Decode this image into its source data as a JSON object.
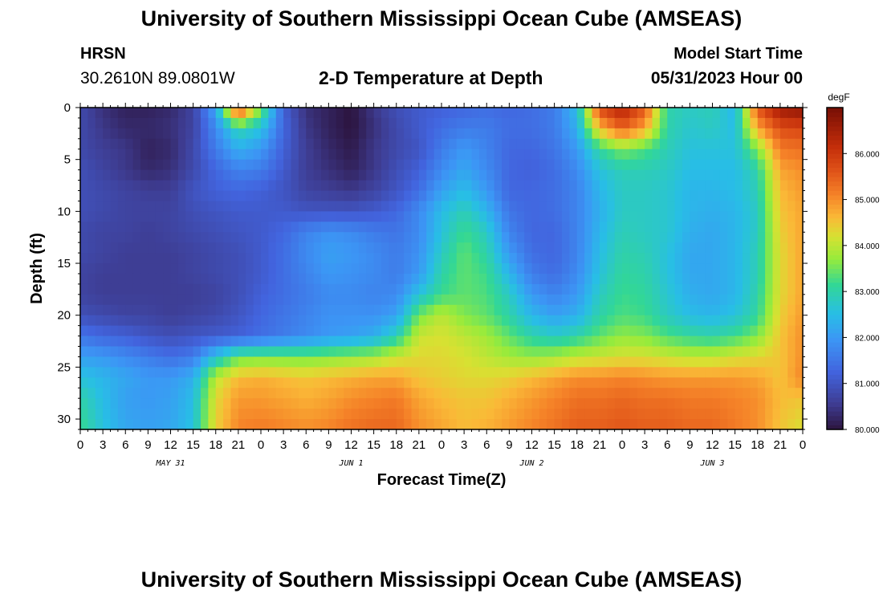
{
  "header": {
    "institution_title": "University of Southern Mississippi Ocean Cube (AMSEAS)",
    "station_id": "HRSN",
    "coordinates": "30.2610N  89.0801W",
    "chart_title": "2-D Temperature at Depth",
    "model_start_label": "Model Start Time",
    "model_start_value": "05/31/2023 Hour 00"
  },
  "footer": {
    "institution_title": "University of Southern Mississippi Ocean Cube (AMSEAS)"
  },
  "chart_data": {
    "type": "heatmap",
    "title": "2-D Temperature at Depth",
    "xlabel": "Forecast Time(Z)",
    "ylabel": "Depth (ft)",
    "x_hours_range": [
      0,
      96
    ],
    "y_range_ft": [
      0,
      31
    ],
    "x_tick_labels": [
      "0",
      "3",
      "6",
      "9",
      "12",
      "15",
      "18",
      "21",
      "0",
      "3",
      "6",
      "9",
      "12",
      "15",
      "18",
      "21",
      "0",
      "3",
      "6",
      "9",
      "12",
      "15",
      "18",
      "21",
      "0",
      "3",
      "6",
      "9",
      "12",
      "15",
      "18",
      "21",
      "0"
    ],
    "y_tick_labels": [
      "0",
      "5",
      "10",
      "15",
      "20",
      "25",
      "30"
    ],
    "y_tick_values": [
      0,
      5,
      10,
      15,
      20,
      25,
      30
    ],
    "date_labels": [
      {
        "label": "MAY 31",
        "hour": 12
      },
      {
        "label": "JUN 1",
        "hour": 36
      },
      {
        "label": "JUN 2",
        "hour": 60
      },
      {
        "label": "JUN 3",
        "hour": 84
      }
    ],
    "colorbar": {
      "unit": "degF",
      "min": 80.0,
      "max": 87.0,
      "tick_labels": [
        "86.000",
        "85.000",
        "84.000",
        "83.000",
        "82.000",
        "81.000",
        "80.000"
      ],
      "tick_values": [
        86,
        85,
        84,
        83,
        82,
        81,
        80
      ]
    },
    "depths_ft": [
      0,
      2,
      4,
      6,
      8,
      10,
      12,
      14,
      16,
      18,
      20,
      22,
      24,
      26,
      28,
      31
    ],
    "hours": [
      0,
      3,
      6,
      9,
      12,
      15,
      18,
      21,
      24,
      27,
      30,
      33,
      36,
      39,
      42,
      45,
      48,
      51,
      54,
      57,
      60,
      63,
      66,
      69,
      72,
      75,
      78,
      81,
      84,
      87,
      90,
      93,
      96
    ],
    "temperature_degF": [
      [
        80.8,
        80.4,
        80.2,
        80.2,
        80.3,
        80.7,
        82.2,
        86.0,
        83.6,
        81.2,
        80.4,
        80.2,
        80.0,
        80.5,
        80.9,
        81.1,
        81.2,
        81.3,
        81.4,
        81.3,
        81.4,
        81.6,
        82.5,
        85.8,
        86.4,
        85.6,
        83.0,
        82.8,
        82.9,
        82.4,
        85.6,
        86.6,
        86.8
      ],
      [
        80.8,
        80.5,
        80.3,
        80.3,
        80.4,
        80.7,
        81.8,
        83.0,
        82.6,
        81.3,
        80.5,
        80.2,
        80.0,
        80.4,
        80.8,
        81.1,
        81.4,
        81.6,
        81.6,
        81.4,
        81.4,
        81.6,
        82.3,
        84.6,
        85.5,
        84.8,
        83.0,
        82.7,
        82.8,
        82.5,
        84.8,
        85.7,
        85.8
      ],
      [
        80.8,
        80.6,
        80.5,
        80.2,
        80.3,
        80.8,
        81.6,
        82.3,
        82.0,
        81.2,
        80.6,
        80.3,
        80.1,
        80.5,
        80.8,
        81.0,
        81.6,
        82.0,
        81.7,
        81.3,
        81.3,
        81.5,
        82.0,
        83.1,
        83.6,
        83.3,
        82.9,
        82.6,
        82.6,
        82.6,
        83.6,
        85.2,
        85.3
      ],
      [
        80.9,
        80.7,
        80.5,
        80.3,
        80.4,
        80.8,
        81.3,
        81.7,
        81.6,
        81.1,
        80.6,
        80.4,
        80.2,
        80.5,
        80.9,
        81.2,
        81.8,
        82.2,
        81.8,
        81.3,
        81.2,
        81.4,
        81.8,
        82.6,
        82.9,
        82.9,
        82.8,
        82.5,
        82.5,
        82.5,
        83.0,
        84.8,
        85.0
      ],
      [
        80.9,
        80.8,
        80.7,
        80.6,
        80.6,
        81.0,
        81.2,
        81.3,
        81.2,
        81.0,
        80.7,
        80.6,
        80.5,
        80.7,
        81.0,
        81.4,
        82.1,
        82.5,
        82.0,
        81.3,
        81.3,
        81.4,
        81.7,
        82.4,
        82.8,
        82.8,
        82.7,
        82.4,
        82.4,
        82.5,
        82.9,
        84.6,
        84.9
      ],
      [
        80.9,
        80.8,
        80.7,
        80.7,
        80.7,
        80.9,
        81.0,
        81.1,
        81.1,
        81.1,
        81.0,
        81.0,
        81.0,
        81.1,
        81.3,
        81.8,
        82.5,
        82.9,
        82.4,
        81.5,
        81.3,
        81.4,
        81.7,
        82.3,
        82.8,
        82.8,
        82.7,
        82.4,
        82.3,
        82.4,
        82.8,
        84.5,
        84.8
      ],
      [
        80.8,
        80.7,
        80.7,
        80.6,
        80.7,
        80.8,
        80.9,
        81.0,
        81.1,
        81.3,
        81.7,
        81.9,
        81.8,
        81.6,
        81.5,
        81.8,
        82.6,
        83.2,
        82.8,
        81.7,
        81.3,
        81.3,
        81.7,
        82.4,
        82.9,
        82.8,
        82.7,
        82.3,
        82.2,
        82.4,
        82.8,
        84.4,
        84.8
      ],
      [
        80.8,
        80.7,
        80.6,
        80.6,
        80.6,
        80.7,
        80.8,
        80.9,
        81.1,
        81.4,
        81.8,
        82.1,
        82.0,
        81.8,
        81.6,
        81.9,
        82.8,
        83.4,
        83.0,
        82.0,
        81.4,
        81.3,
        81.7,
        82.5,
        83.0,
        82.9,
        82.6,
        82.2,
        82.2,
        82.4,
        82.9,
        84.3,
        84.8
      ],
      [
        80.7,
        80.6,
        80.6,
        80.6,
        80.6,
        80.7,
        80.8,
        80.9,
        81.1,
        81.4,
        81.7,
        82.0,
        81.9,
        81.8,
        81.6,
        82.0,
        83.0,
        83.4,
        83.2,
        82.4,
        81.6,
        81.4,
        81.8,
        82.6,
        83.1,
        83.0,
        82.6,
        82.2,
        82.2,
        82.4,
        82.9,
        84.3,
        84.8
      ],
      [
        80.7,
        80.6,
        80.6,
        80.6,
        80.6,
        80.6,
        80.7,
        80.9,
        81.2,
        81.4,
        81.6,
        81.8,
        81.8,
        81.7,
        81.8,
        82.6,
        83.2,
        83.4,
        83.3,
        82.8,
        82.0,
        81.7,
        82.0,
        82.8,
        83.2,
        83.1,
        82.7,
        82.3,
        82.2,
        82.4,
        83.0,
        84.3,
        84.8
      ],
      [
        80.9,
        80.8,
        80.7,
        80.7,
        80.6,
        80.7,
        80.8,
        81.0,
        81.3,
        81.5,
        81.7,
        81.9,
        81.9,
        81.9,
        82.1,
        83.5,
        84.0,
        83.6,
        83.4,
        83.0,
        82.4,
        82.1,
        82.3,
        83.0,
        83.3,
        83.2,
        82.8,
        82.5,
        82.4,
        82.6,
        83.1,
        84.4,
        84.9
      ],
      [
        81.5,
        81.3,
        81.2,
        81.0,
        80.9,
        81.0,
        81.1,
        81.2,
        81.4,
        81.6,
        81.8,
        82.0,
        82.1,
        82.3,
        82.9,
        84.1,
        84.2,
        84.0,
        83.8,
        83.4,
        83.0,
        82.8,
        83.0,
        83.4,
        83.7,
        83.6,
        83.3,
        83.1,
        83.0,
        83.2,
        83.6,
        84.5,
        85.0
      ],
      [
        82.1,
        82.0,
        81.8,
        81.6,
        81.4,
        81.6,
        82.6,
        83.4,
        83.5,
        83.5,
        83.5,
        83.6,
        83.7,
        83.8,
        84.1,
        84.3,
        84.3,
        84.2,
        84.0,
        83.8,
        83.7,
        83.8,
        84.0,
        84.1,
        84.2,
        84.2,
        84.1,
        84.0,
        84.0,
        84.2,
        84.3,
        84.5,
        85.0
      ],
      [
        82.6,
        82.4,
        82.2,
        82.0,
        82.0,
        82.3,
        84.0,
        84.6,
        84.7,
        84.6,
        84.5,
        84.6,
        84.7,
        84.8,
        84.8,
        84.5,
        84.4,
        84.3,
        84.3,
        84.4,
        84.6,
        84.8,
        85.0,
        85.0,
        85.1,
        85.0,
        84.9,
        84.9,
        84.9,
        84.9,
        84.8,
        84.5,
        85.1
      ],
      [
        83.0,
        82.5,
        82.1,
        82.0,
        82.1,
        82.5,
        84.3,
        84.9,
        84.9,
        84.8,
        84.7,
        84.8,
        85.0,
        85.1,
        85.2,
        84.8,
        84.6,
        84.5,
        84.5,
        84.7,
        84.9,
        85.1,
        85.3,
        85.3,
        85.4,
        85.3,
        85.3,
        85.2,
        85.2,
        85.1,
        85.0,
        84.6,
        84.5
      ],
      [
        83.2,
        82.6,
        82.2,
        82.1,
        82.2,
        82.6,
        84.4,
        85.1,
        85.2,
        85.1,
        85.0,
        85.1,
        85.3,
        85.4,
        85.4,
        85.0,
        84.8,
        84.6,
        84.7,
        84.9,
        85.1,
        85.3,
        85.5,
        85.5,
        85.6,
        85.5,
        85.5,
        85.4,
        85.4,
        85.2,
        85.0,
        84.5,
        84.2
      ]
    ]
  }
}
